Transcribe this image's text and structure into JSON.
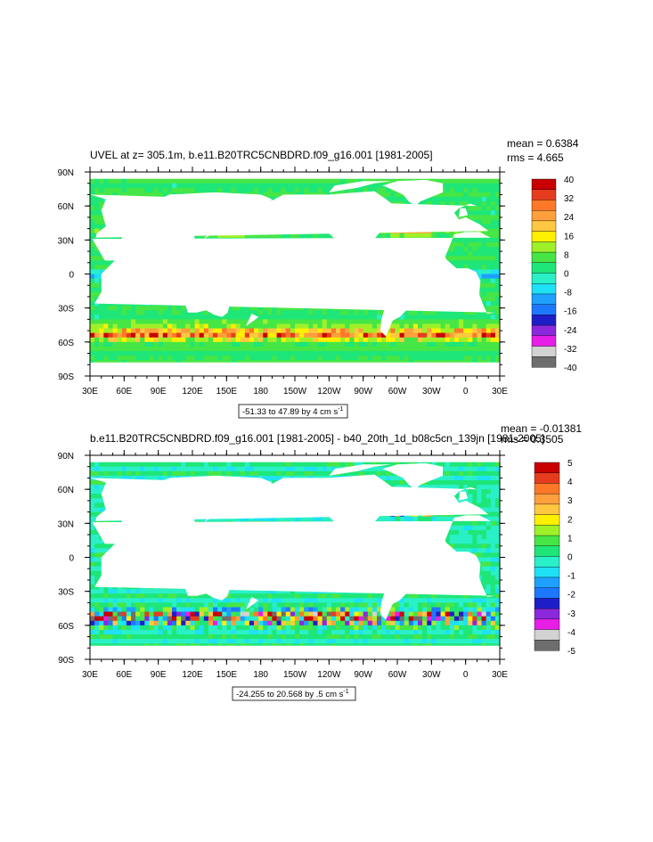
{
  "chart_data": [
    {
      "type": "heatmap",
      "variant": "global-ocean-contour-map",
      "title": "UVEL at z= 305.1m, b.e11.B20TRC5CNBDRD.f09_g16.001 [1981-2005]",
      "stats": {
        "mean": "mean = 0.6384",
        "rms": "rms = 4.665"
      },
      "x_ticks": [
        "30E",
        "60E",
        "90E",
        "120E",
        "150E",
        "180",
        "150W",
        "120W",
        "90W",
        "60W",
        "30W",
        "0",
        "30E"
      ],
      "y_ticks": [
        "90N",
        "60N",
        "30N",
        "0",
        "30S",
        "60S",
        "90S"
      ],
      "xlim_lon_east": [
        30,
        390
      ],
      "ylim_lat": [
        -90,
        90
      ],
      "colorbar_levels": [
        -40,
        -32,
        -24,
        -16,
        -8,
        0,
        8,
        16,
        24,
        32,
        40
      ],
      "colorbar_labels": [
        "40",
        "32",
        "24",
        "16",
        "8",
        "0",
        "-8",
        "-16",
        "-24",
        "-32",
        "-40"
      ],
      "range_label": {
        "text": "-51.33 to 47.89 by 4 cm s",
        "sup": "-1"
      },
      "data_range": {
        "min": -51.33,
        "max": 47.89,
        "interval": 4,
        "units": "cm s-1"
      }
    },
    {
      "type": "heatmap",
      "variant": "global-ocean-contour-map",
      "title": "b.e11.B20TRC5CNBDRD.f09_g16.001 [1981-2005] - b40_20th_1d_b08c5cn_139jn [1981-2005]",
      "stats": {
        "mean": "mean = -0.01381",
        "rms": "rms = 0.3505"
      },
      "x_ticks": [
        "30E",
        "60E",
        "90E",
        "120E",
        "150E",
        "180",
        "150W",
        "120W",
        "90W",
        "60W",
        "30W",
        "0",
        "30E"
      ],
      "y_ticks": [
        "90N",
        "60N",
        "30N",
        "0",
        "30S",
        "60S",
        "90S"
      ],
      "xlim_lon_east": [
        30,
        390
      ],
      "ylim_lat": [
        -90,
        90
      ],
      "colorbar_levels": [
        -5,
        -4,
        -3,
        -2,
        -1,
        0,
        1,
        2,
        3,
        4,
        5
      ],
      "colorbar_labels": [
        "5",
        "4",
        "3",
        "2",
        "1",
        "0",
        "-1",
        "-2",
        "-3",
        "-4",
        "-5"
      ],
      "range_label": {
        "text": "-24.255 to 20.568 by .5 cm s",
        "sup": "-1"
      },
      "data_range": {
        "min": -24.255,
        "max": 20.568,
        "interval": 0.5,
        "units": "cm s-1"
      }
    }
  ],
  "palette": [
    "#6e6e6e",
    "#d2d2d2",
    "#e61ee6",
    "#8c28dc",
    "#1e1ec8",
    "#1e78ff",
    "#1ea0ff",
    "#1ee1f5",
    "#2af0c8",
    "#1ee678",
    "#46e646",
    "#a0f028",
    "#fff000",
    "#ffc840",
    "#ffa03c",
    "#ff7828",
    "#e63c1e",
    "#c80000"
  ],
  "colors": {
    "land": "#ffffff",
    "frame": "#000000"
  }
}
